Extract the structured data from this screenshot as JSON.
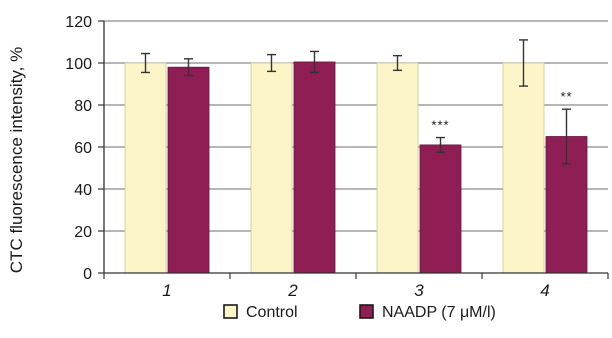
{
  "chart_data": {
    "type": "bar",
    "ylabel": "CTC fluorescence intensity, %",
    "ylim": [
      0,
      120
    ],
    "yticks": [
      "0",
      "20",
      "40",
      "60",
      "80",
      "100",
      "120"
    ],
    "grid": "horizontal",
    "legend_position": "bottom",
    "categories": [
      "1",
      "2",
      "3",
      "4"
    ],
    "series": [
      {
        "name": "Control",
        "color": "#fcf5c7",
        "values": [
          100,
          100,
          100,
          100
        ],
        "errors": [
          4.5,
          4,
          3.5,
          11
        ]
      },
      {
        "name": "NAADP (7 μM/l)",
        "color": "#8f1e55",
        "values": [
          98,
          100.5,
          61,
          65
        ],
        "errors": [
          4,
          5,
          3.5,
          13
        ]
      }
    ],
    "annotations": [
      {
        "category": "3",
        "series": "NAADP (7 μM/l)",
        "text": "***"
      },
      {
        "category": "4",
        "series": "NAADP (7 μM/l)",
        "text": "**"
      }
    ]
  }
}
